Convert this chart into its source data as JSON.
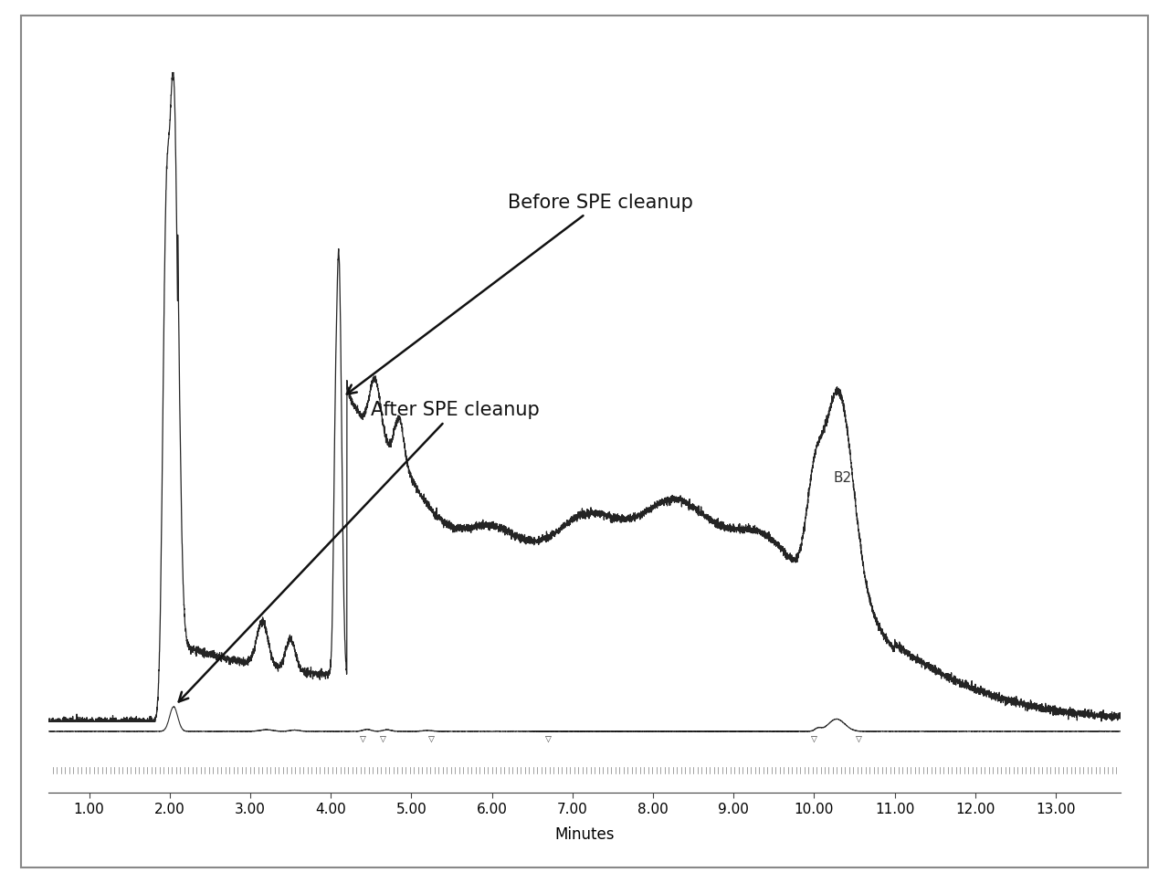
{
  "xlabel": "Minutes",
  "xlabel_fontsize": 12,
  "xlim": [
    0.5,
    13.8
  ],
  "xticks": [
    1.0,
    2.0,
    3.0,
    4.0,
    5.0,
    6.0,
    7.0,
    8.0,
    9.0,
    10.0,
    11.0,
    12.0,
    13.0
  ],
  "xtick_labels": [
    "1.00",
    "2.00",
    "3.00",
    "4.00",
    "5.00",
    "6.00",
    "7.00",
    "8.00",
    "9.00",
    "10.00",
    "11.00",
    "12.00",
    "13.00"
  ],
  "line_color": "#111111",
  "background_color": "#ffffff",
  "border_color": "#999999",
  "annotation_before": "Before SPE cleanup",
  "annotation_after": "After SPE cleanup",
  "annotation_b2": "B2",
  "annotation_fontsize": 15,
  "b2_fontsize": 11
}
